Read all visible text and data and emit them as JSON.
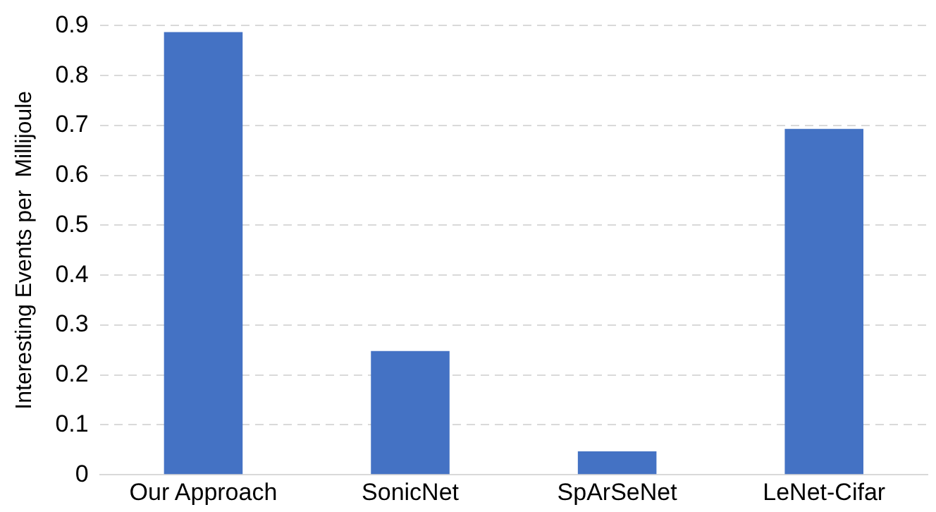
{
  "chart_data": {
    "type": "bar",
    "ylabel": "Interesting Events per  Millijoule",
    "categories": [
      "Our Approach",
      "SonicNet",
      "SpArSeNet",
      "LeNet-Cifar"
    ],
    "values": [
      0.887,
      0.248,
      0.047,
      0.693
    ],
    "color": "#4472c4",
    "ylim": [
      0,
      0.9
    ],
    "yticks": [
      0,
      0.1,
      0.2,
      0.3,
      0.4,
      0.5,
      0.6,
      0.7,
      0.8,
      0.9
    ],
    "grid": "y",
    "legend": false
  }
}
